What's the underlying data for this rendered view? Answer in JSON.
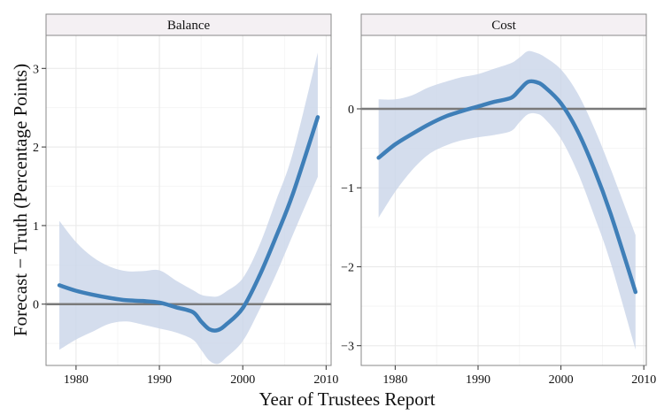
{
  "chart_data": {
    "type": "line",
    "xlabel": "Year of Trustees Report",
    "ylabel": "Forecast − Truth (Percentage Points)",
    "legend": "none",
    "grid": true,
    "colors": {
      "line": "#3f7fb8",
      "band": "#c9d5e8",
      "zero_line": "#7a7a7a",
      "strip_fill": "#f4f0f3",
      "panel_border": "#888888"
    },
    "panels": [
      {
        "title": "Balance",
        "xlim": [
          1976.4,
          2010.6
        ],
        "ylim": [
          -0.78,
          3.42
        ],
        "x_ticks": [
          "1980",
          "1990",
          "2000",
          "2010"
        ],
        "y_ticks": [
          "0",
          "1",
          "2",
          "3"
        ],
        "x": [
          1978,
          1980,
          1982,
          1984,
          1986,
          1988,
          1990,
          1992,
          1994,
          1995,
          1996,
          1997,
          1998,
          2000,
          2002,
          2004,
          2006,
          2009
        ],
        "y": [
          0.24,
          0.17,
          0.12,
          0.08,
          0.05,
          0.04,
          0.02,
          -0.04,
          -0.1,
          -0.22,
          -0.32,
          -0.33,
          -0.26,
          -0.05,
          0.36,
          0.86,
          1.4,
          2.38
        ],
        "lower": [
          -0.58,
          -0.45,
          -0.35,
          -0.25,
          -0.22,
          -0.26,
          -0.31,
          -0.36,
          -0.45,
          -0.58,
          -0.72,
          -0.76,
          -0.68,
          -0.47,
          -0.07,
          0.38,
          0.88,
          1.62
        ],
        "upper": [
          1.06,
          0.79,
          0.6,
          0.48,
          0.42,
          0.42,
          0.43,
          0.3,
          0.18,
          0.12,
          0.1,
          0.1,
          0.16,
          0.33,
          0.75,
          1.32,
          1.92,
          3.2
        ]
      },
      {
        "title": "Cost",
        "xlim": [
          1975.9,
          2010.3
        ],
        "ylim": [
          -3.25,
          0.93
        ],
        "x_ticks": [
          "1980",
          "1990",
          "2000",
          "2010"
        ],
        "y_ticks": [
          "0",
          "−1",
          "−2",
          "−3"
        ],
        "x": [
          1978,
          1980,
          1982,
          1984,
          1986,
          1988,
          1990,
          1992,
          1994,
          1995,
          1996,
          1997,
          1998,
          2000,
          2002,
          2004,
          2006,
          2009
        ],
        "y": [
          -0.62,
          -0.45,
          -0.32,
          -0.2,
          -0.1,
          -0.03,
          0.03,
          0.09,
          0.14,
          0.24,
          0.34,
          0.34,
          0.28,
          0.07,
          -0.28,
          -0.76,
          -1.33,
          -2.32
        ],
        "lower": [
          -1.38,
          -1.05,
          -0.78,
          -0.58,
          -0.47,
          -0.4,
          -0.36,
          -0.33,
          -0.28,
          -0.17,
          -0.07,
          -0.06,
          -0.12,
          -0.38,
          -0.8,
          -1.35,
          -1.95,
          -3.05
        ],
        "upper": [
          0.12,
          0.12,
          0.17,
          0.27,
          0.34,
          0.4,
          0.44,
          0.51,
          0.58,
          0.65,
          0.73,
          0.71,
          0.66,
          0.5,
          0.2,
          -0.24,
          -0.76,
          -1.6
        ]
      }
    ]
  }
}
